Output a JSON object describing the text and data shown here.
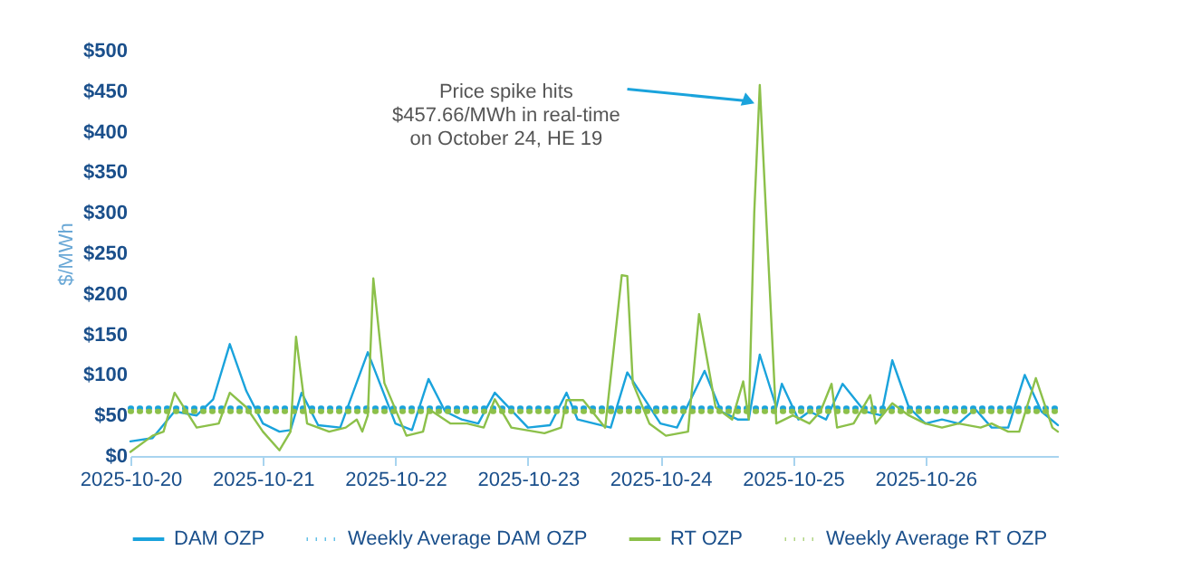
{
  "chart_data": {
    "type": "line",
    "ylabel": "$/MWh",
    "xlim": [
      "2025-10-20",
      "2025-10-27"
    ],
    "xticks": [
      "2025-10-20",
      "2025-10-21",
      "2025-10-22",
      "2025-10-23",
      "2025-10-24",
      "2025-10-25",
      "2025-10-26"
    ],
    "ylim": [
      0,
      500
    ],
    "yticks": [
      {
        "value": 0,
        "label": "$0"
      },
      {
        "value": 50,
        "label": "$50"
      },
      {
        "value": 100,
        "label": "$100"
      },
      {
        "value": 150,
        "label": "$150"
      },
      {
        "value": 200,
        "label": "$200"
      },
      {
        "value": 250,
        "label": "$250"
      },
      {
        "value": 300,
        "label": "$300"
      },
      {
        "value": 350,
        "label": "$350"
      },
      {
        "value": 400,
        "label": "$400"
      },
      {
        "value": 450,
        "label": "$450"
      },
      {
        "value": 500,
        "label": "$500"
      }
    ],
    "grid": false,
    "legend": "bottom",
    "marker": "none",
    "annotations": [
      "Price spike hits\n$457.66/MWh in real-time\non October 24, HE 19"
    ],
    "series": [
      {
        "name": "DAM OZP",
        "color": "#1aa3dc",
        "line_style": "solid",
        "x": [
          "2025-10-20T00:00",
          "2025-10-20T04:00",
          "2025-10-20T08:00",
          "2025-10-20T12:00",
          "2025-10-20T15:00",
          "2025-10-20T18:00",
          "2025-10-20T21:00",
          "2025-10-21T00:00",
          "2025-10-21T03:00",
          "2025-10-21T05:00",
          "2025-10-21T07:00",
          "2025-10-21T10:00",
          "2025-10-21T14:00",
          "2025-10-21T19:00",
          "2025-10-22T00:00",
          "2025-10-22T03:00",
          "2025-10-22T06:00",
          "2025-10-22T09:00",
          "2025-10-22T12:00",
          "2025-10-22T15:00",
          "2025-10-22T18:00",
          "2025-10-23T00:00",
          "2025-10-23T04:00",
          "2025-10-23T07:00",
          "2025-10-23T09:00",
          "2025-10-23T12:00",
          "2025-10-23T15:00",
          "2025-10-23T18:00",
          "2025-10-24T00:00",
          "2025-10-24T03:00",
          "2025-10-24T08:00",
          "2025-10-24T11:00",
          "2025-10-24T14:00",
          "2025-10-24T16:00",
          "2025-10-24T18:00",
          "2025-10-24T21:00",
          "2025-10-24T22:00",
          "2025-10-25T01:00",
          "2025-10-25T03:00",
          "2025-10-25T06:00",
          "2025-10-25T09:00",
          "2025-10-25T13:00",
          "2025-10-25T16:00",
          "2025-10-25T18:00",
          "2025-10-25T21:00",
          "2025-10-26T00:00",
          "2025-10-26T03:00",
          "2025-10-26T06:00",
          "2025-10-26T09:00",
          "2025-10-26T12:00",
          "2025-10-26T15:00",
          "2025-10-26T18:00",
          "2025-10-26T21:00",
          "2025-10-27T00:00"
        ],
        "values": [
          18,
          22,
          55,
          50,
          70,
          138,
          80,
          40,
          30,
          32,
          78,
          38,
          35,
          128,
          40,
          32,
          95,
          55,
          45,
          40,
          78,
          35,
          38,
          78,
          45,
          40,
          35,
          103,
          40,
          35,
          105,
          55,
          45,
          45,
          125,
          60,
          89,
          45,
          55,
          45,
          89,
          55,
          50,
          118,
          60,
          40,
          45,
          40,
          58,
          35,
          35,
          100,
          55,
          38
        ]
      },
      {
        "name": "Weekly Average DAM OZP",
        "color": "#1aa3dc",
        "line_style": "dotted",
        "x": [
          "2025-10-20T00:00",
          "2025-10-27T00:00"
        ],
        "values": [
          59,
          59
        ]
      },
      {
        "name": "RT OZP",
        "color": "#8cc04a",
        "line_style": "solid",
        "x": [
          "2025-10-20T00:00",
          "2025-10-20T04:00",
          "2025-10-20T06:00",
          "2025-10-20T08:00",
          "2025-10-20T12:00",
          "2025-10-20T16:00",
          "2025-10-20T18:00",
          "2025-10-20T21:00",
          "2025-10-21T00:00",
          "2025-10-21T03:00",
          "2025-10-21T05:00",
          "2025-10-21T06:00",
          "2025-10-21T08:00",
          "2025-10-21T12:00",
          "2025-10-21T15:00",
          "2025-10-21T17:00",
          "2025-10-21T18:00",
          "2025-10-21T19:00",
          "2025-10-21T20:00",
          "2025-10-21T22:00",
          "2025-10-22T02:00",
          "2025-10-22T05:00",
          "2025-10-22T06:00",
          "2025-10-22T10:00",
          "2025-10-22T13:00",
          "2025-10-22T16:00",
          "2025-10-22T18:00",
          "2025-10-22T21:00",
          "2025-10-23T03:00",
          "2025-10-23T06:00",
          "2025-10-23T07:00",
          "2025-10-23T10:00",
          "2025-10-23T14:00",
          "2025-10-23T17:00",
          "2025-10-23T18:00",
          "2025-10-23T19:00",
          "2025-10-23T22:00",
          "2025-10-24T01:00",
          "2025-10-24T05:00",
          "2025-10-24T07:00",
          "2025-10-24T10:00",
          "2025-10-24T13:00",
          "2025-10-24T15:00",
          "2025-10-24T16:00",
          "2025-10-24T17:00",
          "2025-10-24T18:00",
          "2025-10-24T21:00",
          "2025-10-25T00:00",
          "2025-10-25T03:00",
          "2025-10-25T05:00",
          "2025-10-25T07:00",
          "2025-10-25T08:00",
          "2025-10-25T11:00",
          "2025-10-25T14:00",
          "2025-10-25T15:00",
          "2025-10-25T18:00",
          "2025-10-25T21:00",
          "2025-10-26T00:00",
          "2025-10-26T03:00",
          "2025-10-26T06:00",
          "2025-10-26T10:00",
          "2025-10-26T12:00",
          "2025-10-26T15:00",
          "2025-10-26T17:00",
          "2025-10-26T20:00",
          "2025-10-26T23:00",
          "2025-10-27T00:00"
        ],
        "values": [
          5,
          25,
          30,
          78,
          35,
          40,
          78,
          60,
          30,
          7,
          30,
          147,
          40,
          30,
          35,
          45,
          30,
          50,
          219,
          90,
          25,
          30,
          58,
          40,
          40,
          35,
          70,
          35,
          28,
          35,
          69,
          69,
          35,
          223,
          222,
          90,
          40,
          25,
          30,
          175,
          60,
          45,
          92,
          45,
          300,
          457.66,
          40,
          50,
          40,
          55,
          89,
          35,
          40,
          75,
          40,
          65,
          50,
          40,
          35,
          40,
          35,
          40,
          30,
          30,
          96,
          35,
          30
        ]
      },
      {
        "name": "Weekly Average RT OZP",
        "color": "#8cc04a",
        "line_style": "dotted",
        "x": [
          "2025-10-20T00:00",
          "2025-10-27T00:00"
        ],
        "values": [
          55,
          55
        ]
      }
    ]
  }
}
